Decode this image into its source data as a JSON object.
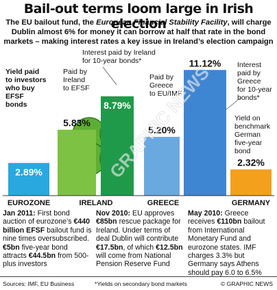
{
  "title": "Bail-out terms loom large in Irish election",
  "intro": {
    "pre": "The EU bailout fund, the ",
    "italic": "European Financial Stability Facility",
    "post": ", will charge Dublin almost 6% for money it can borrow at half that rate in the bond markets – making interest rates a key issue in Ireland’s election campaign"
  },
  "chart_data": {
    "type": "bar",
    "ylim": [
      0,
      11.5
    ],
    "categories": [
      "EUROZONE",
      "IRELAND",
      "GREECE",
      "GERMANY"
    ],
    "bars": [
      {
        "category": "EUROZONE",
        "value": 2.89,
        "value_label": "2.89%",
        "color": "#29a8e0",
        "label": "Yield paid to investors who buy EFSF bonds"
      },
      {
        "category": "IRELAND",
        "value": 5.83,
        "value_label": "5.83%",
        "color": "#7dc242",
        "label": "Paid by Ireland to EFSF"
      },
      {
        "category": "IRELAND",
        "value": 8.79,
        "value_label": "8.79%",
        "color": "#1f9a4a",
        "label": "Interest paid by Ireland for 10-year bonds*"
      },
      {
        "category": "GREECE",
        "value": 5.2,
        "value_label": "5.20%",
        "color": "#6aa8e0",
        "label": "Paid by Greece to EU/IMF"
      },
      {
        "category": "GREECE",
        "value": 11.12,
        "value_label": "11.12%",
        "color": "#3f86d2",
        "label": "Interest paid by Greece for 10-year bonds*"
      },
      {
        "category": "GERMANY",
        "value": 2.32,
        "value_label": "2.32%",
        "color": "#f3a01d",
        "label": "Yield on benchmark German five-year bond"
      }
    ]
  },
  "panels": [
    {
      "date": "Jan 2011:",
      "text": " First bond auction of eurozone’s ",
      "amt1": "€440 billion EFSF",
      "text2": " bailout fund is nine times oversubscribed. ",
      "amt2": "€5bn",
      "text3": " five-year bond attracts ",
      "amt3": "€44.5bn",
      "text4": " from 500-plus investors"
    },
    {
      "date": "Nov 2010:",
      "text": " EU approves ",
      "amt1": "€85bn",
      "text2": " rescue package for Ireland. Under terms of deal Dublin will contribute ",
      "amt2": "€17.5bn",
      "text3": ", of which ",
      "amt3": "€12.5bn",
      "text4": " will come from National Pension Reserve Fund"
    },
    {
      "date": "May 2010:",
      "text": " Greece receives ",
      "amt1": "€110bn",
      "text2": " bailout from International Monetary Fund and eurozone states. IMF charges 3.3% but Germany says Athens should pay 6.0 to 6.5%",
      "amt2": "",
      "text3": "",
      "amt3": "",
      "text4": ""
    }
  ],
  "footer": {
    "sources": "Sources: IMF, EU Business",
    "note": "*Yields on secondary bond markets",
    "credit": "© GRAPHIC NEWS"
  },
  "watermark": "GRAPHIC NEWS"
}
